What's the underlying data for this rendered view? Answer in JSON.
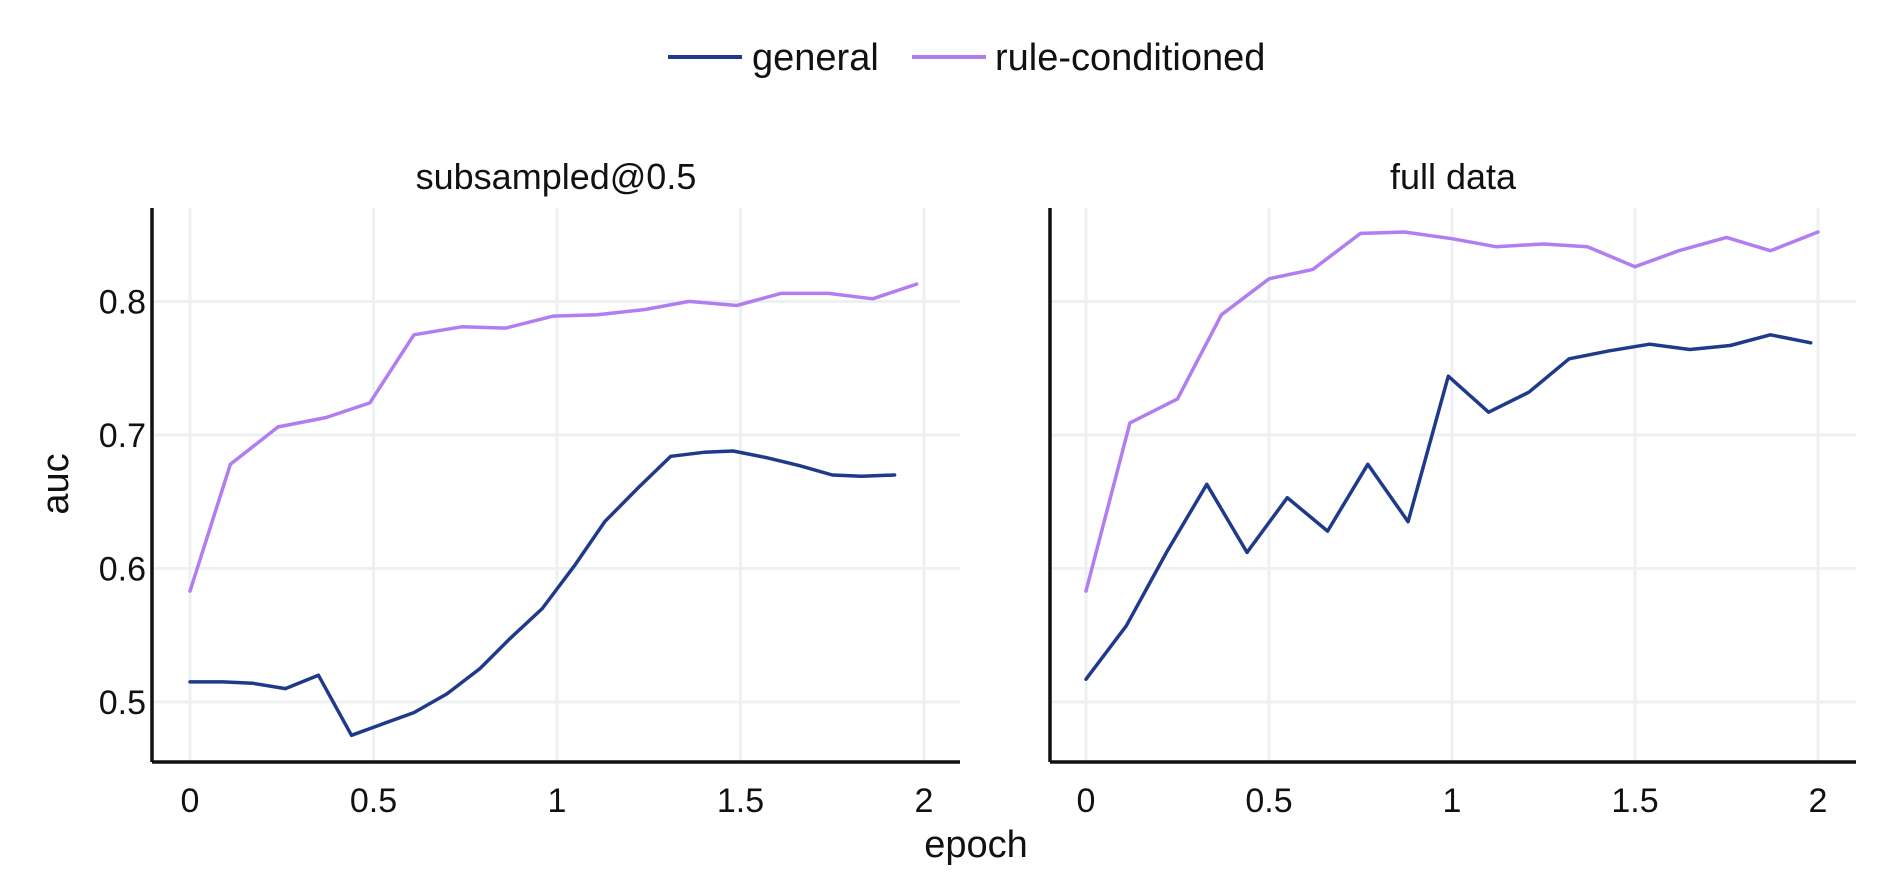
{
  "chart_data": {
    "type": "line",
    "xlabel": "epoch",
    "ylabel": "auc",
    "legend": {
      "placement": "top-center",
      "entries": [
        {
          "name": "general",
          "color": "#1f3a8a"
        },
        {
          "name": "rule-conditioned",
          "color": "#b07ef0"
        }
      ]
    },
    "grid": true,
    "xticks": [
      "0",
      "0.5",
      "1",
      "1.5",
      "2"
    ],
    "yticks": [
      "0.5",
      "0.6",
      "0.7",
      "0.8"
    ],
    "ylim": [
      0.455,
      0.87
    ],
    "panels": [
      {
        "title": "subsampled@0.5",
        "xlim": [
          -0.1,
          2.1
        ],
        "series": [
          {
            "name": "general",
            "color": "#1f3a8a",
            "x": [
              0,
              0.09,
              0.17,
              0.26,
              0.35,
              0.44,
              0.52,
              0.61,
              0.7,
              0.79,
              0.87,
              0.96,
              1.05,
              1.13,
              1.22,
              1.31,
              1.4,
              1.48,
              1.57,
              1.66,
              1.75,
              1.83,
              1.92
            ],
            "values": [
              0.515,
              0.515,
              0.514,
              0.51,
              0.52,
              0.475,
              0.483,
              0.492,
              0.506,
              0.525,
              0.547,
              0.57,
              0.603,
              0.635,
              0.66,
              0.684,
              0.687,
              0.688,
              0.683,
              0.677,
              0.67,
              0.669,
              0.67
            ]
          },
          {
            "name": "rule-conditioned",
            "color": "#b07ef0",
            "x": [
              0,
              0.11,
              0.24,
              0.37,
              0.49,
              0.61,
              0.74,
              0.86,
              0.99,
              1.11,
              1.24,
              1.36,
              1.49,
              1.61,
              1.74,
              1.86,
              1.98
            ],
            "values": [
              0.583,
              0.678,
              0.706,
              0.713,
              0.724,
              0.775,
              0.781,
              0.78,
              0.789,
              0.79,
              0.794,
              0.8,
              0.797,
              0.806,
              0.806,
              0.802,
              0.813
            ]
          }
        ]
      },
      {
        "title": "full data",
        "xlim": [
          -0.1,
          2.1
        ],
        "series": [
          {
            "name": "general",
            "color": "#1f3a8a",
            "x": [
              0,
              0.11,
              0.22,
              0.33,
              0.44,
              0.55,
              0.66,
              0.77,
              0.88,
              0.99,
              1.1,
              1.21,
              1.32,
              1.43,
              1.54,
              1.65,
              1.76,
              1.87,
              1.98
            ],
            "values": [
              0.517,
              0.557,
              0.612,
              0.663,
              0.612,
              0.653,
              0.628,
              0.678,
              0.635,
              0.744,
              0.717,
              0.732,
              0.757,
              0.763,
              0.768,
              0.764,
              0.767,
              0.775,
              0.769
            ]
          },
          {
            "name": "rule-conditioned",
            "color": "#b07ef0",
            "x": [
              0,
              0.12,
              0.25,
              0.37,
              0.5,
              0.62,
              0.75,
              0.87,
              1.0,
              1.12,
              1.25,
              1.37,
              1.5,
              1.62,
              1.75,
              1.87,
              2.0
            ],
            "values": [
              0.583,
              0.709,
              0.727,
              0.79,
              0.817,
              0.824,
              0.851,
              0.852,
              0.847,
              0.841,
              0.843,
              0.841,
              0.826,
              0.838,
              0.848,
              0.838,
              0.852
            ]
          }
        ]
      }
    ]
  }
}
